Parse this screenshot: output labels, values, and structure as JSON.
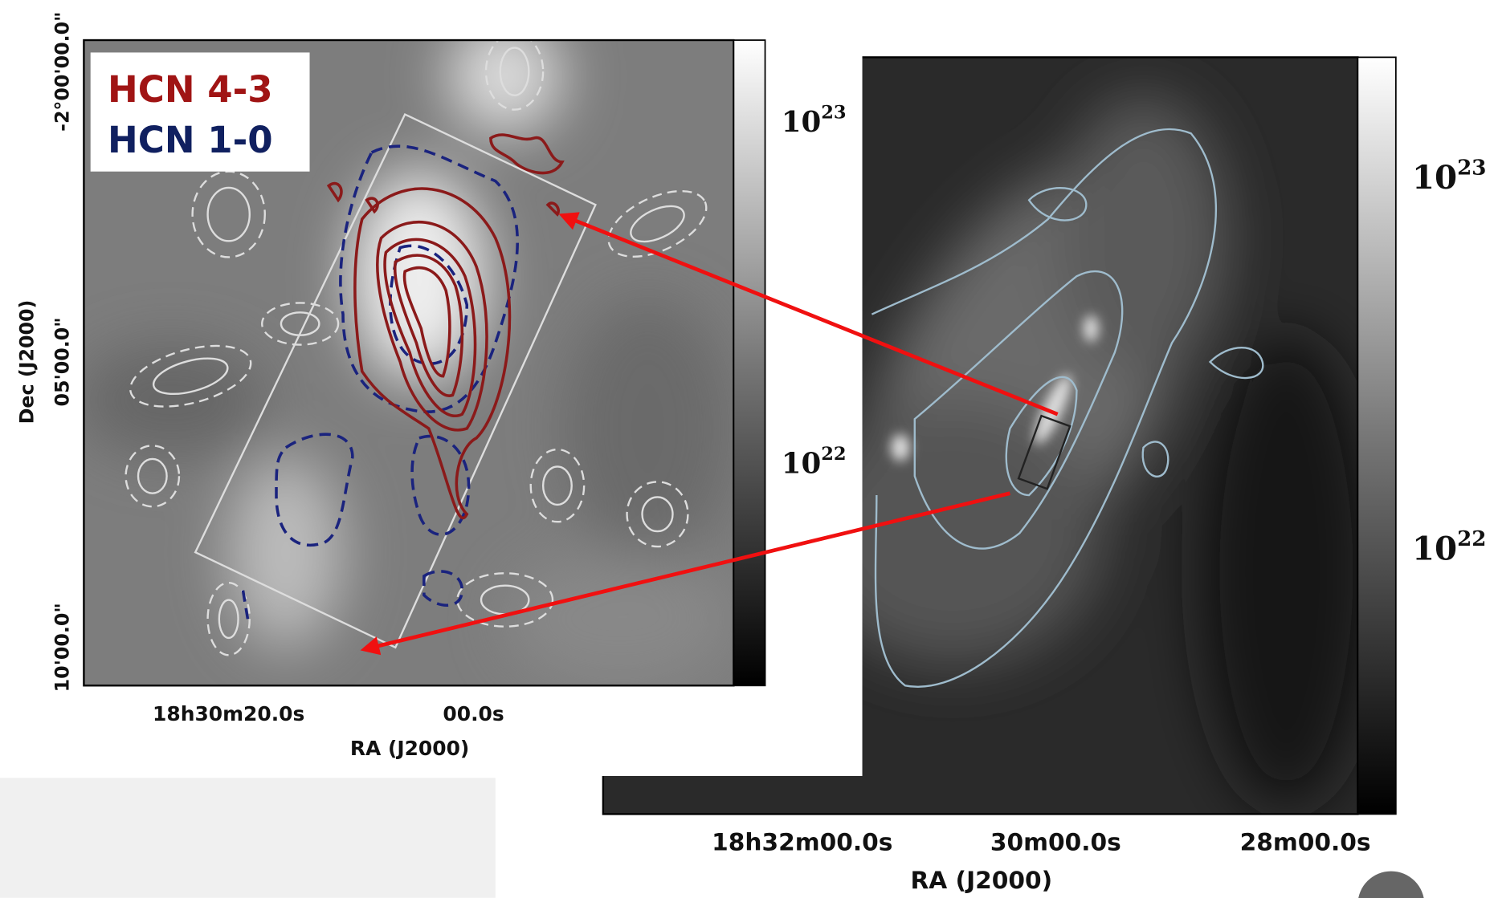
{
  "left_panel": {
    "legend": [
      "HCN 4-3",
      "HCN 1-0"
    ],
    "y_axis_label": "Dec (J2000)",
    "y_ticks": [
      "-2°00'00.0\"",
      "05'00.0\"",
      "10'00.0\""
    ],
    "x_ticks": [
      "18h30m20.0s",
      "00.0s"
    ],
    "x_axis_label": "RA (J2000)",
    "colorbar_ticks": [
      {
        "base": "10",
        "exponent": "23"
      },
      {
        "base": "10",
        "exponent": "22"
      }
    ]
  },
  "right_panel": {
    "x_ticks": [
      "18h32m00.0s",
      "30m00.0s",
      "28m00.0s"
    ],
    "x_axis_label": "RA (J2000)",
    "colorbar_ticks": [
      {
        "base": "10",
        "exponent": "23"
      },
      {
        "base": "10",
        "exponent": "22"
      }
    ]
  }
}
